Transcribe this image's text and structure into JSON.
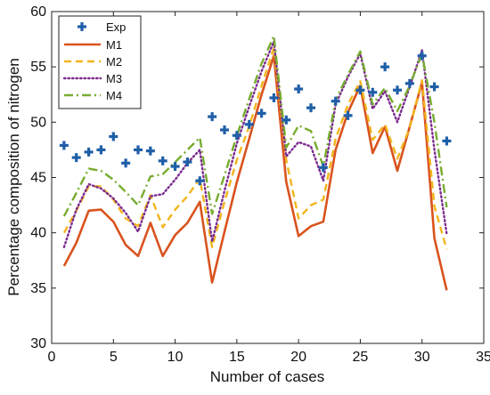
{
  "chart_data": {
    "type": "line",
    "title": "",
    "xlabel": "Number of cases",
    "ylabel": "Percentage composition of nitrogen",
    "xlim": [
      0,
      35
    ],
    "ylim": [
      30,
      60
    ],
    "xticks": [
      0,
      5,
      10,
      15,
      20,
      25,
      30,
      35
    ],
    "yticks": [
      30,
      35,
      40,
      45,
      50,
      55,
      60
    ],
    "grid": false,
    "legend_position": "top-left",
    "x": [
      1,
      2,
      3,
      4,
      5,
      6,
      7,
      8,
      9,
      10,
      11,
      12,
      13,
      14,
      15,
      16,
      17,
      18,
      19,
      20,
      21,
      22,
      23,
      24,
      25,
      26,
      27,
      28,
      29,
      30,
      31,
      32
    ],
    "series": [
      {
        "name": "Exp",
        "style": "scatter-plus",
        "color": "#1f5fa8",
        "values": [
          47.9,
          46.8,
          47.3,
          47.5,
          48.7,
          46.3,
          47.5,
          47.4,
          46.5,
          46.0,
          46.4,
          44.7,
          50.5,
          49.3,
          48.8,
          49.8,
          50.8,
          52.2,
          50.2,
          53.0,
          51.3,
          45.9,
          51.9,
          50.6,
          52.9,
          52.7,
          55.0,
          52.9,
          53.5,
          56.0,
          53.2,
          48.3
        ]
      },
      {
        "name": "M1",
        "style": "solid",
        "color": "#d9531e",
        "values": [
          37.0,
          39.1,
          42.0,
          42.1,
          41.0,
          38.9,
          37.9,
          40.9,
          37.9,
          39.8,
          40.9,
          42.8,
          35.5,
          40.1,
          44.6,
          48.5,
          52.5,
          56.0,
          44.6,
          39.7,
          40.6,
          41.0,
          47.5,
          50.9,
          53.3,
          47.2,
          49.6,
          45.6,
          49.6,
          53.6,
          39.5,
          34.8
        ]
      },
      {
        "name": "M2",
        "style": "dashed",
        "color": "#f2b51c",
        "values": [
          40.0,
          42.0,
          44.2,
          44.2,
          43.0,
          41.3,
          40.6,
          43.4,
          40.5,
          42.1,
          43.3,
          44.9,
          38.7,
          42.8,
          46.6,
          49.6,
          53.3,
          56.7,
          46.6,
          41.3,
          42.5,
          43.0,
          48.5,
          51.6,
          53.7,
          48.4,
          49.8,
          46.7,
          49.5,
          53.8,
          42.4,
          38.5
        ]
      },
      {
        "name": "M3",
        "style": "dotted",
        "color": "#7b2b8e",
        "values": [
          38.7,
          42.1,
          44.4,
          44.0,
          43.1,
          41.8,
          40.1,
          43.3,
          43.5,
          44.8,
          46.3,
          47.5,
          39.2,
          43.8,
          48.1,
          51.4,
          54.6,
          57.3,
          46.9,
          48.2,
          47.8,
          44.7,
          51.6,
          54.1,
          56.2,
          51.2,
          52.8,
          50.0,
          53.2,
          56.5,
          47.5,
          39.9
        ]
      },
      {
        "name": "M4",
        "style": "dash-dot",
        "color": "#77ac30",
        "values": [
          41.5,
          43.6,
          45.8,
          45.6,
          44.8,
          43.7,
          42.5,
          45.1,
          45.3,
          46.4,
          47.5,
          48.6,
          41.7,
          45.2,
          48.8,
          52.1,
          55.3,
          57.8,
          47.7,
          49.7,
          49.2,
          46.0,
          52.0,
          54.3,
          56.4,
          51.6,
          53.1,
          51.0,
          53.3,
          56.2,
          50.0,
          42.3
        ]
      }
    ]
  }
}
